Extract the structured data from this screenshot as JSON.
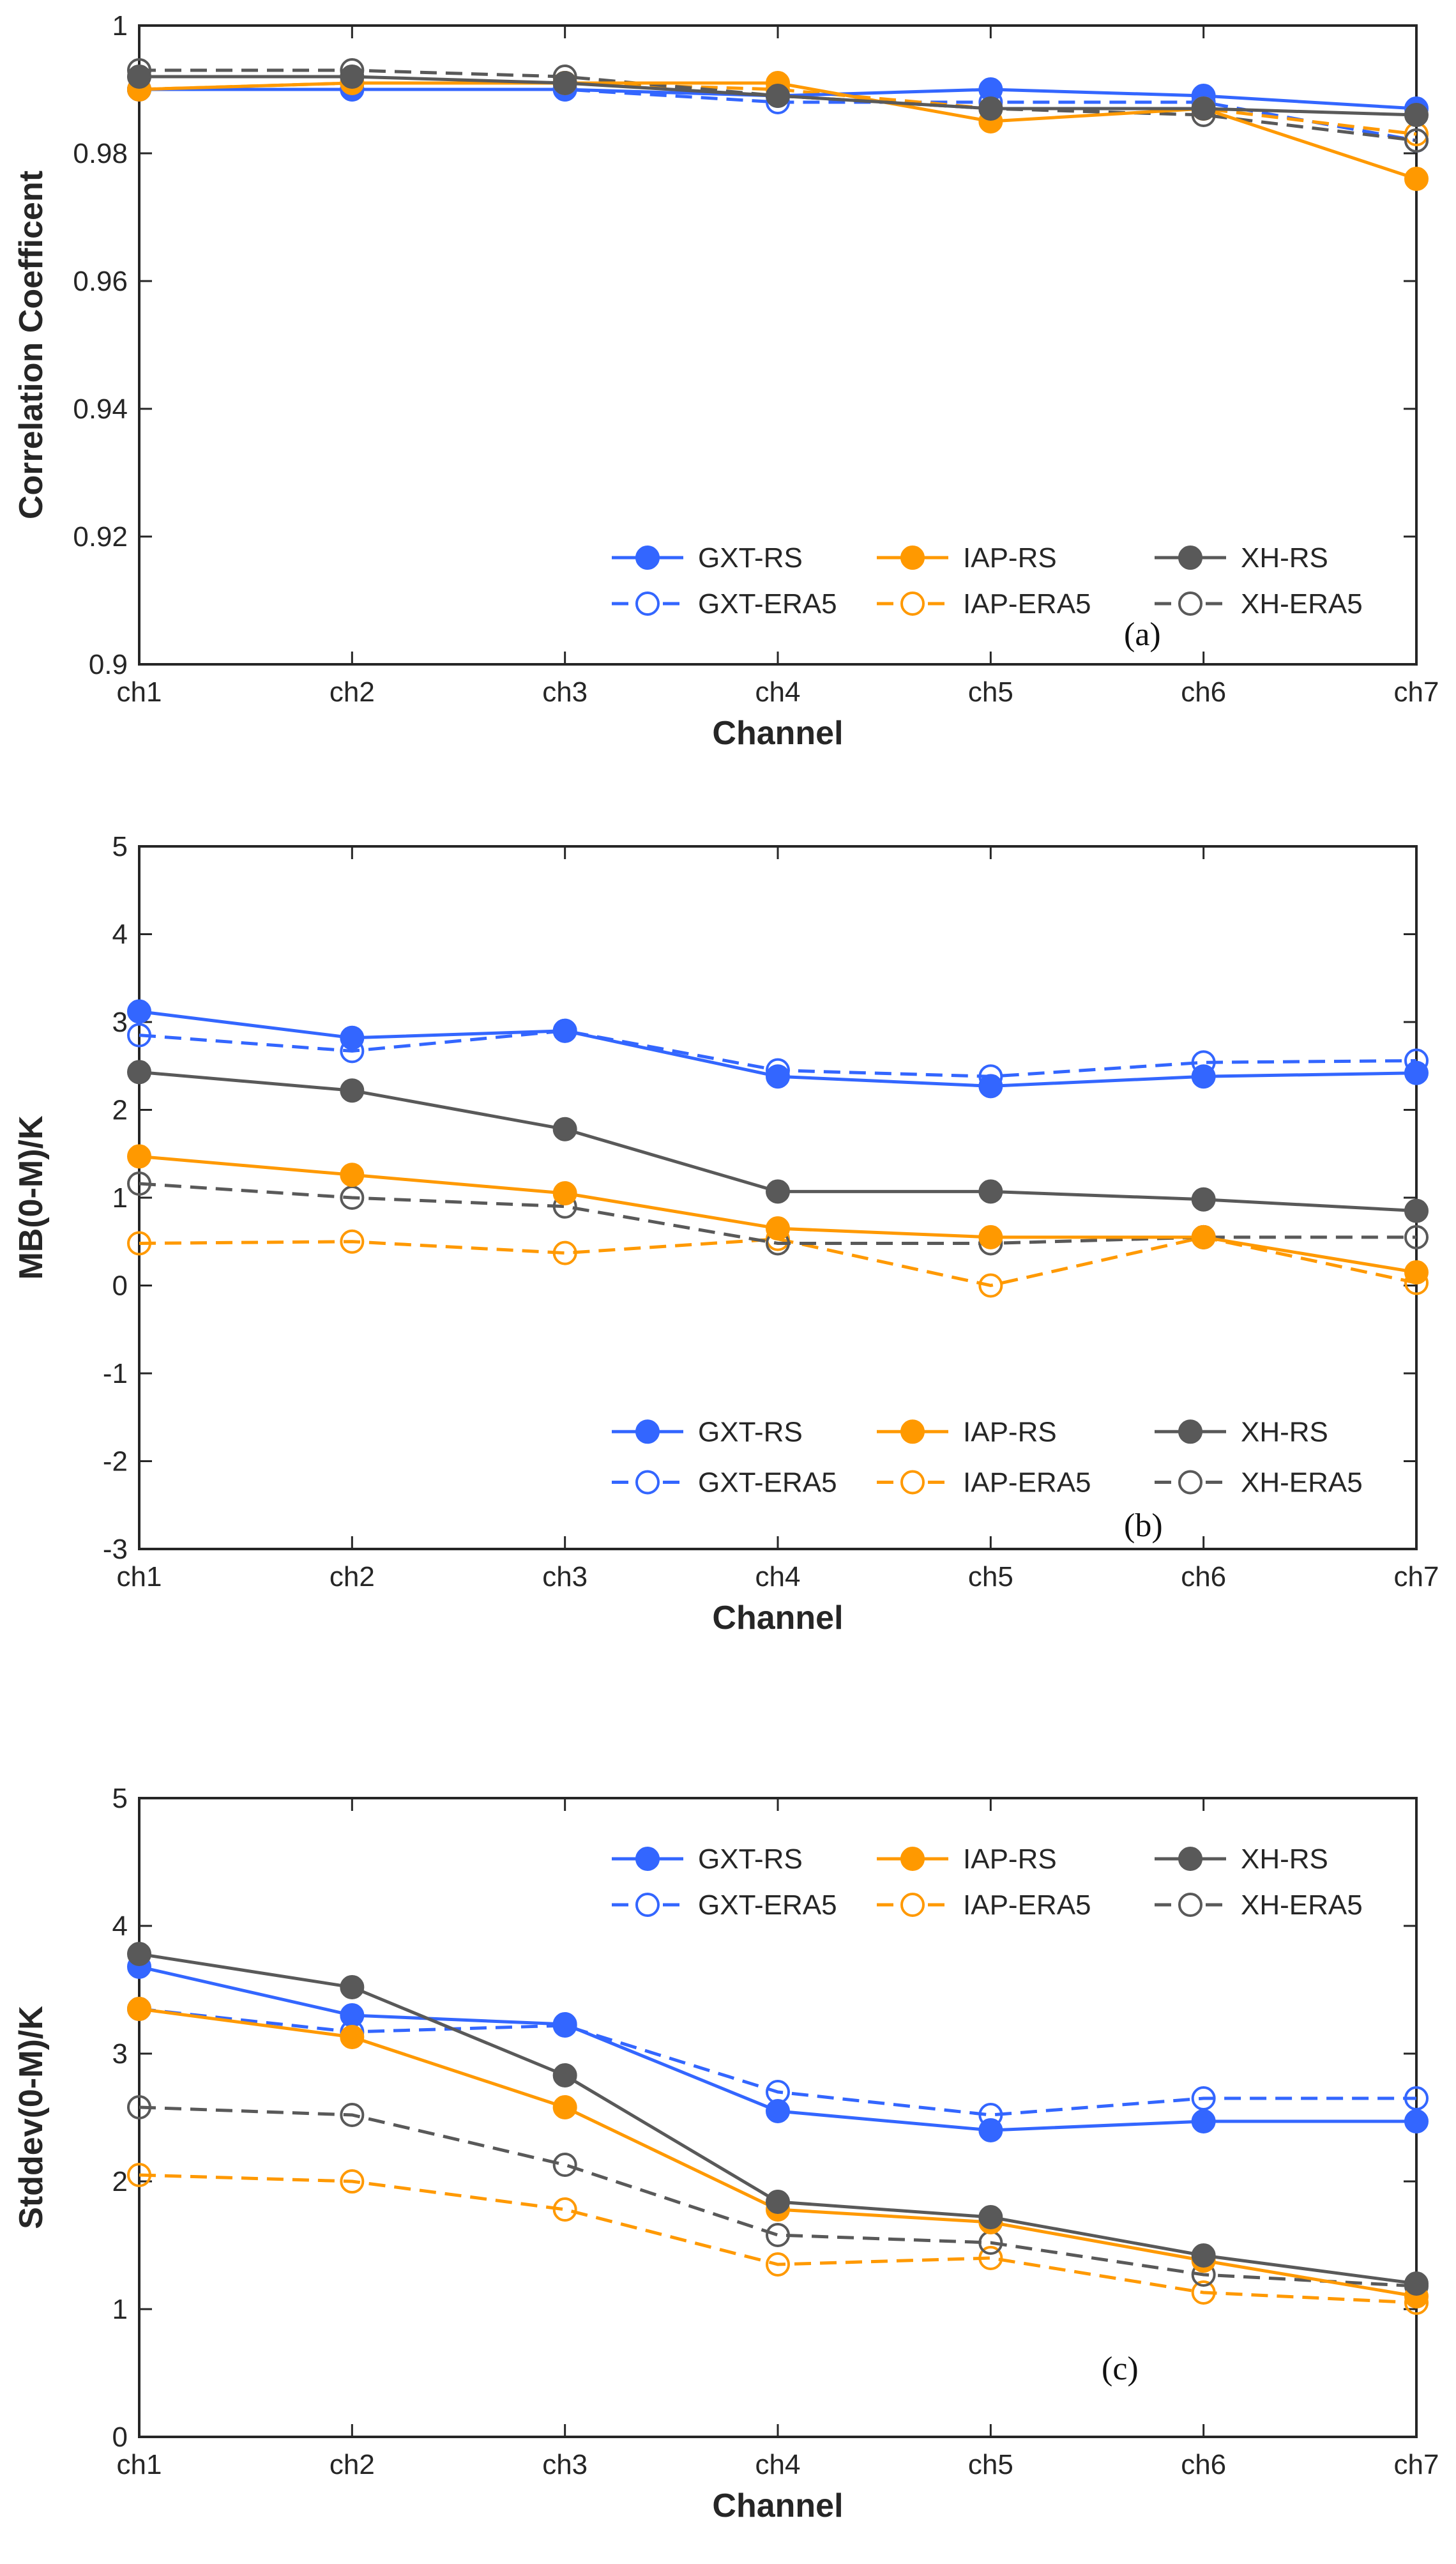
{
  "chart_data": [
    {
      "type": "line",
      "panel_label": "(a)",
      "categories": [
        "ch1",
        "ch2",
        "ch3",
        "ch4",
        "ch5",
        "ch6",
        "ch7"
      ],
      "xlabel": "Channel",
      "ylabel": "Correlation Coefficent",
      "ylim": [
        0.9,
        1
      ],
      "yticks": [
        "0.9",
        "0.92",
        "0.94",
        "0.96",
        "0.98",
        "1"
      ],
      "ytick_values": [
        0.9,
        0.92,
        0.94,
        0.96,
        0.98,
        1.0
      ],
      "legend_position": "bottom-right",
      "series": [
        {
          "name": "GXT-RS",
          "color": "#3366ff",
          "style": "solid-filled",
          "values": [
            0.99,
            0.99,
            0.99,
            0.989,
            0.99,
            0.989,
            0.987
          ]
        },
        {
          "name": "IAP-RS",
          "color": "#ff9900",
          "style": "solid-filled",
          "values": [
            0.99,
            0.991,
            0.991,
            0.991,
            0.985,
            0.987,
            0.976
          ]
        },
        {
          "name": "XH-RS",
          "color": "#595959",
          "style": "solid-filled",
          "values": [
            0.992,
            0.992,
            0.991,
            0.989,
            0.987,
            0.987,
            0.986
          ]
        },
        {
          "name": "GXT-ERA5",
          "color": "#3366ff",
          "style": "dashed-open",
          "values": [
            0.99,
            0.99,
            0.99,
            0.988,
            0.988,
            0.988,
            0.982
          ]
        },
        {
          "name": "IAP-ERA5",
          "color": "#ff9900",
          "style": "dashed-open",
          "values": [
            0.99,
            0.991,
            0.991,
            0.99,
            0.987,
            0.987,
            0.983
          ]
        },
        {
          "name": "XH-ERA5",
          "color": "#595959",
          "style": "dashed-open",
          "values": [
            0.993,
            0.993,
            0.992,
            0.989,
            0.987,
            0.986,
            0.982
          ]
        }
      ]
    },
    {
      "type": "line",
      "panel_label": "(b)",
      "categories": [
        "ch1",
        "ch2",
        "ch3",
        "ch4",
        "ch5",
        "ch6",
        "ch7"
      ],
      "xlabel": "Channel",
      "ylabel": "MB(0-M)/K",
      "ylim": [
        -3,
        5
      ],
      "yticks": [
        "-3",
        "-2",
        "-1",
        "0",
        "1",
        "2",
        "3",
        "4",
        "5"
      ],
      "ytick_values": [
        -3,
        -2,
        -1,
        0,
        1,
        2,
        3,
        4,
        5
      ],
      "legend_position": "bottom-right",
      "series": [
        {
          "name": "GXT-RS",
          "color": "#3366ff",
          "style": "solid-filled",
          "values": [
            3.12,
            2.82,
            2.9,
            2.38,
            2.27,
            2.38,
            2.42
          ]
        },
        {
          "name": "IAP-RS",
          "color": "#ff9900",
          "style": "solid-filled",
          "values": [
            1.47,
            1.26,
            1.05,
            0.65,
            0.55,
            0.55,
            0.15
          ]
        },
        {
          "name": "XH-RS",
          "color": "#595959",
          "style": "solid-filled",
          "values": [
            2.43,
            2.22,
            1.78,
            1.07,
            1.07,
            0.98,
            0.85
          ]
        },
        {
          "name": "GXT-ERA5",
          "color": "#3366ff",
          "style": "dashed-open",
          "values": [
            2.85,
            2.67,
            2.9,
            2.45,
            2.38,
            2.54,
            2.56
          ]
        },
        {
          "name": "IAP-ERA5",
          "color": "#ff9900",
          "style": "dashed-open",
          "values": [
            0.48,
            0.5,
            0.37,
            0.53,
            0.0,
            0.55,
            0.03
          ]
        },
        {
          "name": "XH-ERA5",
          "color": "#595959",
          "style": "dashed-open",
          "values": [
            1.16,
            1.0,
            0.9,
            0.48,
            0.48,
            0.55,
            0.55
          ]
        }
      ]
    },
    {
      "type": "line",
      "panel_label": "(c)",
      "categories": [
        "ch1",
        "ch2",
        "ch3",
        "ch4",
        "ch5",
        "ch6",
        "ch7"
      ],
      "xlabel": "Channel",
      "ylabel": "Stddev(0-M)/K",
      "ylim": [
        0,
        5
      ],
      "yticks": [
        "0",
        "1",
        "2",
        "3",
        "4",
        "5"
      ],
      "ytick_values": [
        0,
        1,
        2,
        3,
        4,
        5
      ],
      "legend_position": "top-right",
      "series": [
        {
          "name": "GXT-RS",
          "color": "#3366ff",
          "style": "solid-filled",
          "values": [
            3.68,
            3.3,
            3.23,
            2.55,
            2.4,
            2.47,
            2.47
          ]
        },
        {
          "name": "IAP-RS",
          "color": "#ff9900",
          "style": "solid-filled",
          "values": [
            3.35,
            3.13,
            2.58,
            1.78,
            1.68,
            1.38,
            1.1
          ]
        },
        {
          "name": "XH-RS",
          "color": "#595959",
          "style": "solid-filled",
          "values": [
            3.78,
            3.52,
            2.83,
            1.84,
            1.72,
            1.42,
            1.2
          ]
        },
        {
          "name": "GXT-ERA5",
          "color": "#3366ff",
          "style": "dashed-open",
          "values": [
            3.35,
            3.17,
            3.22,
            2.7,
            2.52,
            2.65,
            2.65
          ]
        },
        {
          "name": "IAP-ERA5",
          "color": "#ff9900",
          "style": "dashed-open",
          "values": [
            2.05,
            2.0,
            1.78,
            1.35,
            1.4,
            1.13,
            1.05
          ]
        },
        {
          "name": "XH-ERA5",
          "color": "#595959",
          "style": "dashed-open",
          "values": [
            2.58,
            2.52,
            2.13,
            1.58,
            1.52,
            1.27,
            1.18
          ]
        }
      ]
    }
  ]
}
